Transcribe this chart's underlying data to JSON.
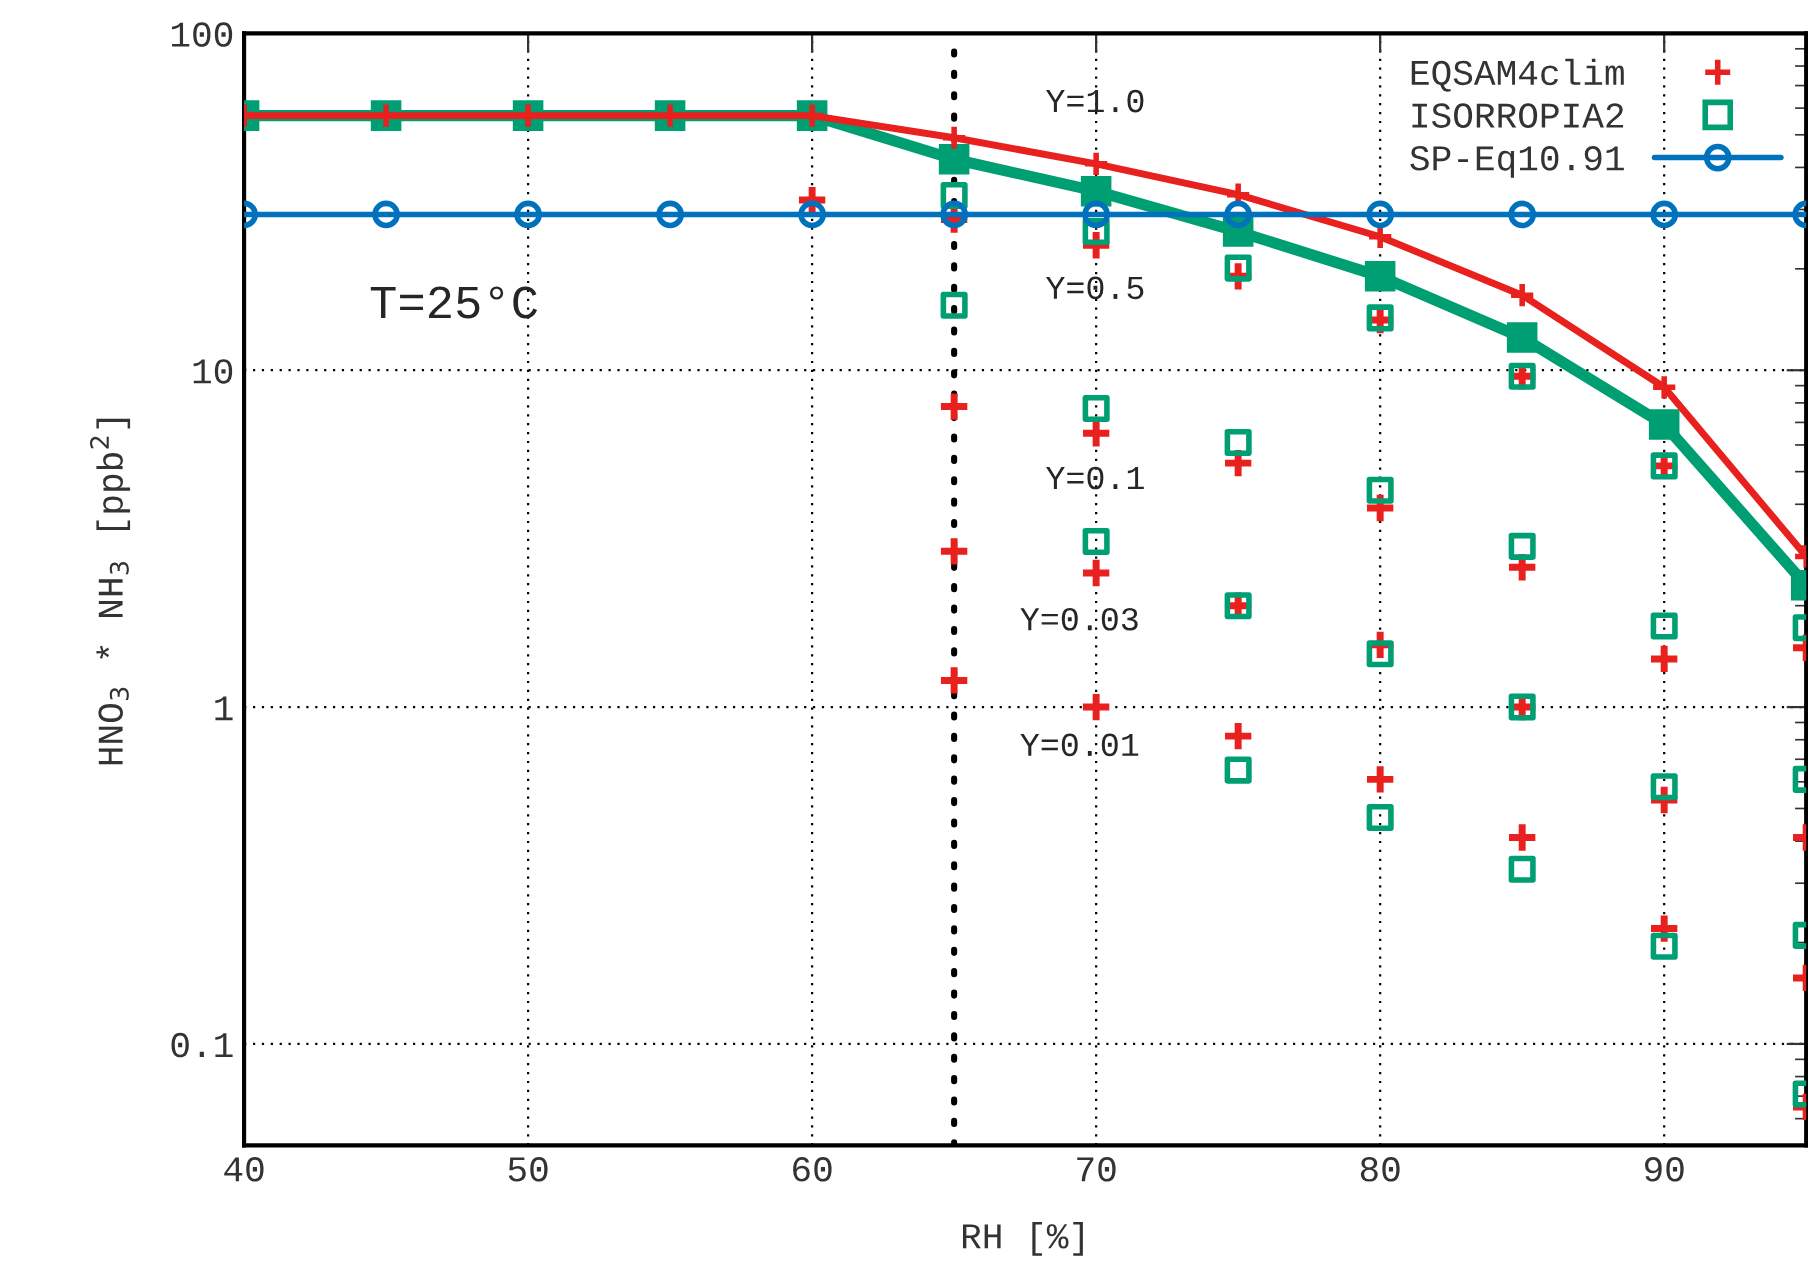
{
  "chart_data": {
    "type": "line",
    "xlabel": "RH [%]",
    "ylabel": "HNO$_{3}$ * NH$_{3}$ [ppb$^{2}$]",
    "xlim": [
      40,
      95
    ],
    "xticks": [
      40,
      50,
      60,
      70,
      80,
      90
    ],
    "ylim": [
      0.05,
      100
    ],
    "yticks": [
      {
        "value": 0.1,
        "label": "0.1"
      },
      1,
      10,
      100
    ],
    "log": "y",
    "grid": true,
    "legend": "top right",
    "series": [
      {
        "color": "#e8201e",
        "marker": "cross",
        "line_style": "solid",
        "x": [
          40,
          45,
          50,
          55,
          60,
          65,
          70,
          75,
          80,
          85,
          90,
          95
        ],
        "values": [
          57,
          57,
          57,
          57,
          57,
          49,
          41,
          33.2,
          24.9,
          16.7,
          8.9,
          2.8
        ]
      },
      {
        "color": "#009e73",
        "marker": "square",
        "line_style": "solid",
        "x": [
          40,
          45,
          50,
          55,
          60,
          65,
          70,
          75,
          80,
          85,
          90,
          95
        ],
        "values": [
          57,
          57,
          57,
          57,
          57,
          42.3,
          34,
          25.8,
          19,
          12.5,
          6.9,
          2.3
        ]
      },
      {
        "type": "scatter",
        "name": "EQSAM4clim",
        "color": "#e8201e",
        "marker": "cross",
        "x": [
          60,
          65,
          65,
          65,
          65,
          70,
          70,
          70,
          70,
          75,
          75,
          75,
          75,
          80,
          80,
          80,
          80,
          85,
          85,
          85,
          85,
          90,
          90,
          90,
          90,
          95,
          95,
          95,
          95
        ],
        "values": [
          32,
          28,
          7.8,
          2.9,
          1.2,
          23.5,
          6.5,
          2.5,
          1.0,
          19,
          5.3,
          2.0,
          0.82,
          14.1,
          3.9,
          1.53,
          0.61,
          9.6,
          2.6,
          1.0,
          0.41,
          5.2,
          1.39,
          0.53,
          0.22,
          1.5,
          0.41,
          0.157,
          0.065
        ]
      },
      {
        "type": "scatter",
        "name": "ISORROPIA2",
        "color": "#009e73",
        "marker": "square",
        "x": [
          65,
          65,
          70,
          70,
          70,
          75,
          75,
          75,
          75,
          80,
          80,
          80,
          80,
          85,
          85,
          85,
          85,
          90,
          90,
          90,
          90,
          95,
          95,
          95,
          95
        ],
        "values": [
          33,
          15.6,
          25.8,
          7.7,
          3.1,
          20.1,
          6.1,
          2.0,
          0.65,
          14.3,
          4.4,
          1.44,
          0.47,
          9.6,
          3.0,
          1.0,
          0.33,
          5.2,
          1.74,
          0.58,
          0.195,
          1.72,
          0.61,
          0.21,
          0.071
        ]
      },
      {
        "name": "SP-Eq10.91",
        "color": "#0072bd",
        "marker": "circle",
        "line_style": "solid",
        "x": [
          40,
          45,
          50,
          55,
          60,
          65,
          70,
          75,
          80,
          85,
          90,
          95
        ],
        "values": [
          29,
          29,
          29,
          29,
          29,
          29,
          29,
          29,
          29,
          29,
          29,
          29
        ]
      }
    ],
    "ref_lines": [
      {
        "axis": "x",
        "value": 65,
        "color": "#000000",
        "line_style": "dotted"
      }
    ],
    "annotations": [
      "Y=1.0",
      "Y=0.5",
      "Y=0.1",
      "Y=0.03",
      "Y=0.01",
      "T=25°C"
    ]
  }
}
